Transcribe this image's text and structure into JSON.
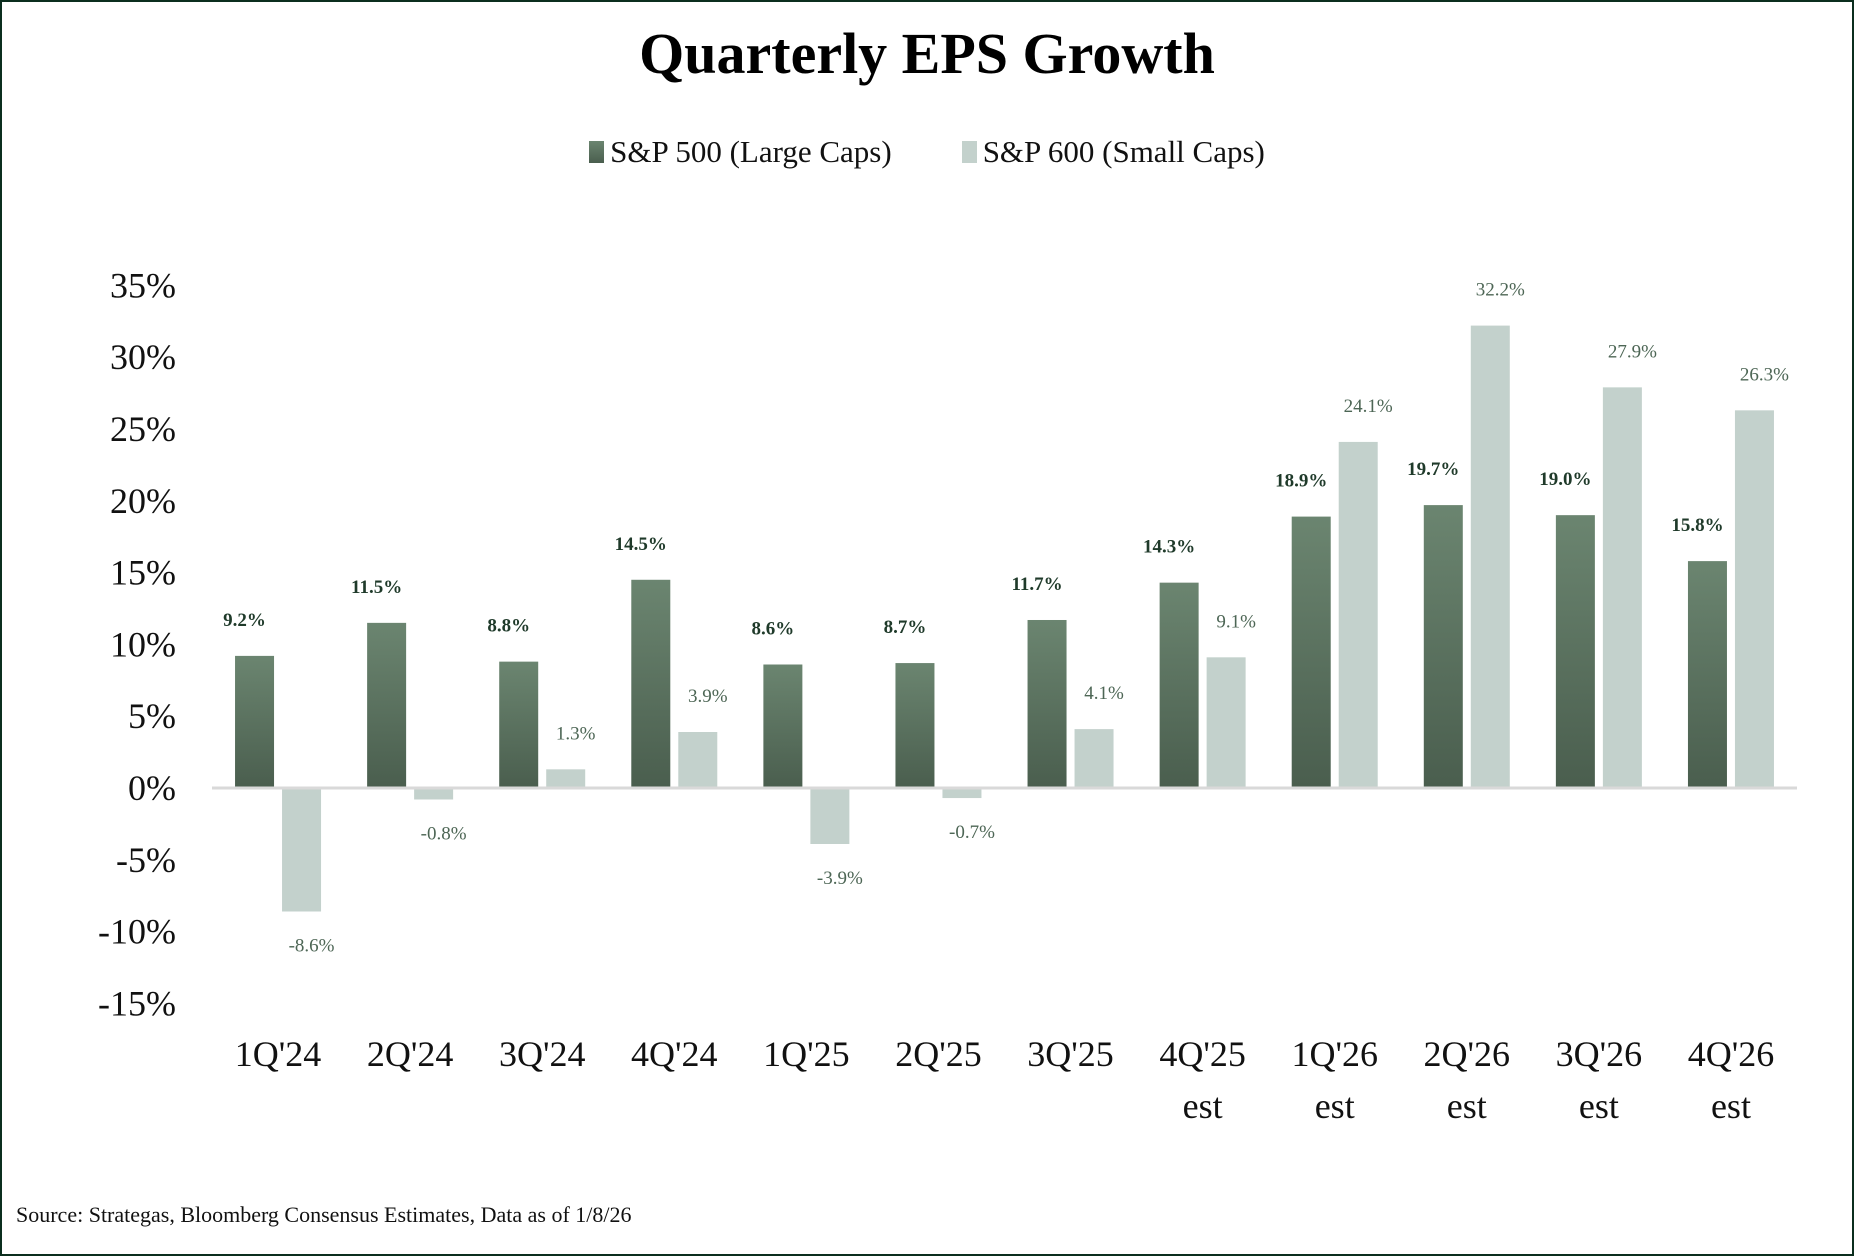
{
  "chart_data": {
    "type": "bar",
    "title": "Quarterly EPS Growth",
    "categories": [
      "1Q'24",
      "2Q'24",
      "3Q'24",
      "4Q'24",
      "1Q'25",
      "2Q'25",
      "3Q'25",
      "4Q'25 est",
      "1Q'26 est",
      "2Q'26 est",
      "3Q'26 est",
      "4Q'26 est"
    ],
    "series": [
      {
        "name": "S&P 500 (Large Caps)",
        "color": "#5b7461",
        "values": [
          9.2,
          11.5,
          8.8,
          14.5,
          8.6,
          8.7,
          11.7,
          14.3,
          18.9,
          19.7,
          19.0,
          15.8
        ]
      },
      {
        "name": "S&P 600 (Small Caps)",
        "color": "#c3d1cc",
        "values": [
          -8.6,
          -0.8,
          1.3,
          3.9,
          -3.9,
          -0.7,
          4.1,
          9.1,
          24.1,
          32.2,
          27.9,
          26.3
        ]
      }
    ],
    "ylim": [
      -15,
      35
    ],
    "yticks": [
      35,
      30,
      25,
      20,
      15,
      10,
      5,
      0,
      -5,
      -10,
      -15
    ],
    "ytick_labels": [
      "35%",
      "30%",
      "25%",
      "20%",
      "15%",
      "10%",
      "5%",
      "0%",
      "-5%",
      "-10%",
      "-15%"
    ],
    "legend": "top",
    "grid": false,
    "xlabel": "",
    "ylabel": ""
  },
  "source": "Source: Strategas, Bloomberg Consensus Estimates, Data as of 1/8/26"
}
